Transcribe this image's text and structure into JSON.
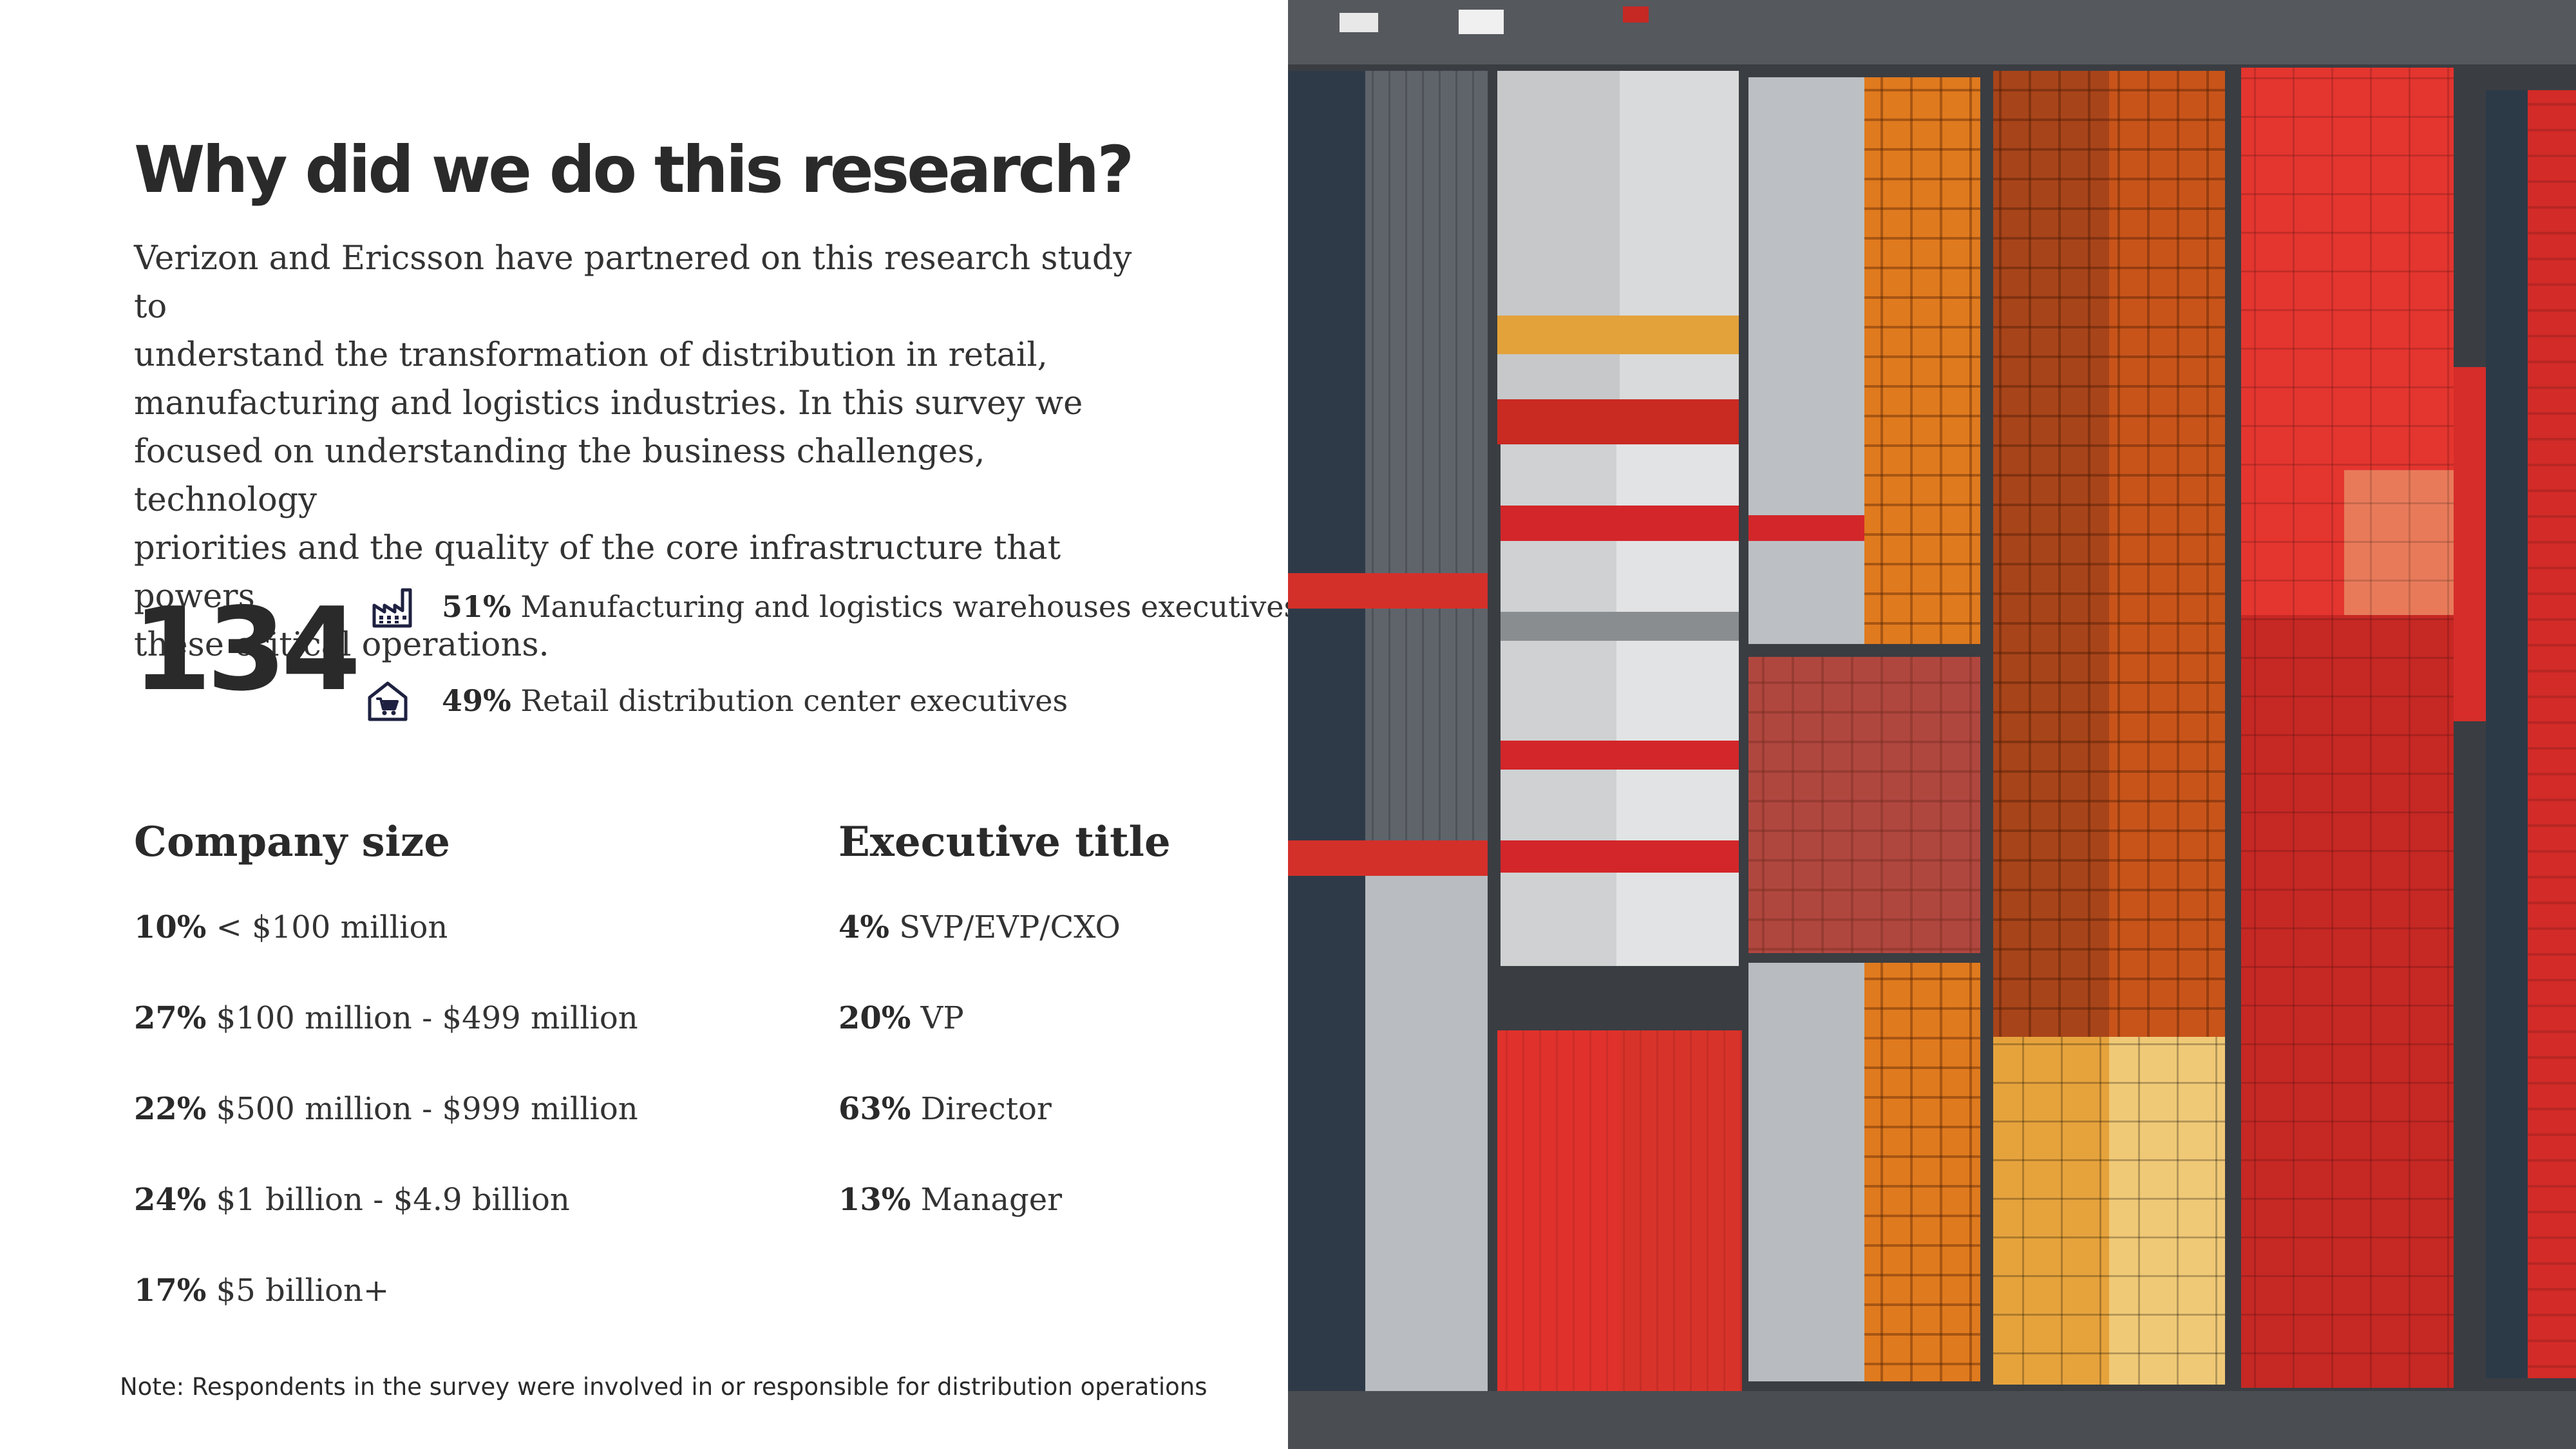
{
  "header": {
    "title": "Why did we do this research?"
  },
  "intro": {
    "lines": [
      "Verizon and Ericsson have partnered on this research study to",
      "understand the transformation of distribution in retail,",
      "manufacturing and logistics industries. In this survey we",
      "focused on understanding the business challenges, technology",
      "priorities and the quality of the core infrastructure that powers",
      "these critical operations."
    ]
  },
  "respondents": {
    "total": "134",
    "segments": [
      {
        "icon": "factory-icon",
        "percent": "51%",
        "label": "Manufacturing and logistics warehouses executives"
      },
      {
        "icon": "store-cart-icon",
        "percent": "49%",
        "label": "Retail distribution center executives"
      }
    ]
  },
  "company_size": {
    "heading": "Company size",
    "items": [
      {
        "percent": "10%",
        "label": "< $100 million"
      },
      {
        "percent": "27%",
        "label": "$100 million - $499 million"
      },
      {
        "percent": "22%",
        "label": "$500 million - $999 million"
      },
      {
        "percent": "24%",
        "label": "$1 billion  - $4.9 billion"
      },
      {
        "percent": "17%",
        "label": "$5 billion+"
      }
    ]
  },
  "executive_title": {
    "heading": "Executive title",
    "items": [
      {
        "percent": "4%",
        "label": "SVP/EVP/CXO"
      },
      {
        "percent": "20%",
        "label": "VP"
      },
      {
        "percent": "63%",
        "label": "Director"
      },
      {
        "percent": "13%",
        "label": "Manager"
      }
    ]
  },
  "footnote": "Note: Respondents in the survey were involved in or responsible for distribution operations",
  "colors": {
    "text": "#232323",
    "icon": "#1e2140",
    "roof_red": "#d92b26",
    "roof_orange": "#e3781c",
    "roof_gray": "#c9ccd0"
  }
}
